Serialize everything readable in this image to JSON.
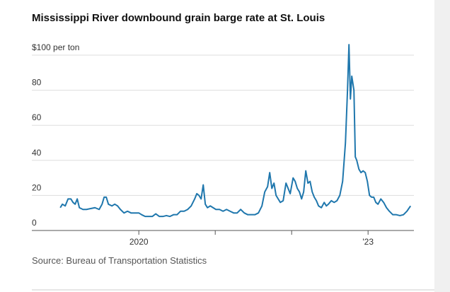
{
  "chart_data": {
    "type": "line",
    "title": "Mississippi River downbound grain barge rate at St. Louis",
    "source": "Source: Bureau of Transportation Statistics",
    "color": "#1f77ad",
    "grid": true,
    "ylim": [
      0,
      110
    ],
    "yticks": [
      0,
      20,
      40,
      60,
      80,
      {
        "value": 100,
        "label": "$100 per ton"
      }
    ],
    "xlim": [
      2018.6,
      2023.6
    ],
    "xticks": [
      2020,
      {
        "value": 2023,
        "label": "'23"
      }
    ],
    "xminor_ticks": [
      2021,
      2022
    ],
    "x": [
      2018.972,
      2019.0,
      2019.037,
      2019.074,
      2019.111,
      2019.139,
      2019.167,
      2019.194,
      2019.222,
      2019.269,
      2019.315,
      2019.37,
      2019.426,
      2019.481,
      2019.519,
      2019.546,
      2019.574,
      2019.602,
      2019.648,
      2019.685,
      2019.722,
      2019.759,
      2019.806,
      2019.852,
      2019.898,
      2019.944,
      2020.0,
      2020.037,
      2020.083,
      2020.13,
      2020.176,
      2020.222,
      2020.269,
      2020.315,
      2020.361,
      2020.407,
      2020.454,
      2020.5,
      2020.546,
      2020.593,
      2020.639,
      2020.685,
      2020.731,
      2020.759,
      2020.787,
      2020.815,
      2020.843,
      2020.87,
      2020.898,
      2020.935,
      2020.972,
      2021.009,
      2021.056,
      2021.102,
      2021.148,
      2021.194,
      2021.241,
      2021.287,
      2021.333,
      2021.38,
      2021.426,
      2021.472,
      2021.519,
      2021.565,
      2021.611,
      2021.648,
      2021.685,
      2021.713,
      2021.741,
      2021.769,
      2021.796,
      2021.824,
      2021.852,
      2021.889,
      2021.926,
      2021.954,
      2021.981,
      2022.019,
      2022.046,
      2022.074,
      2022.102,
      2022.13,
      2022.157,
      2022.185,
      2022.213,
      2022.241,
      2022.269,
      2022.296,
      2022.324,
      2022.352,
      2022.389,
      2022.426,
      2022.454,
      2022.481,
      2022.519,
      2022.556,
      2022.593,
      2022.63,
      2022.667,
      2022.704,
      2022.731,
      2022.75,
      2022.769,
      2022.787,
      2022.815,
      2022.833,
      2022.852,
      2022.88,
      2022.907,
      2022.935,
      2022.963,
      2022.991,
      2023.019,
      2023.046,
      2023.074,
      2023.102,
      2023.13,
      2023.167,
      2023.204,
      2023.241,
      2023.278,
      2023.324,
      2023.37,
      2023.417,
      2023.463,
      2023.509,
      2023.556
    ],
    "values": [
      13,
      15,
      14,
      18,
      18,
      16,
      15,
      18,
      13,
      12,
      12,
      12.5,
      13,
      12,
      15,
      19,
      19,
      15,
      14,
      15,
      14,
      12,
      10,
      11,
      10,
      10,
      10,
      9,
      8,
      8,
      8,
      9.5,
      8,
      8,
      8.5,
      8,
      9,
      9,
      11,
      11,
      12,
      14,
      18,
      21,
      20,
      18,
      26,
      15,
      13,
      14,
      13,
      12,
      12,
      11,
      12,
      11,
      10,
      10,
      12,
      10,
      9,
      9,
      9,
      10,
      14,
      22,
      25,
      33,
      24,
      27,
      20,
      18,
      16,
      17,
      27,
      24,
      21,
      30,
      28,
      24,
      22,
      18,
      22,
      34,
      27,
      28,
      22,
      19,
      17,
      14,
      13,
      16,
      14,
      15,
      17,
      16,
      17,
      20,
      28,
      50,
      80,
      106,
      75,
      88,
      80,
      42,
      40,
      35,
      33,
      34,
      33,
      28,
      20,
      19,
      19,
      16,
      15,
      18,
      16,
      13,
      11,
      9,
      9,
      8.5,
      9,
      11,
      14
    ]
  }
}
